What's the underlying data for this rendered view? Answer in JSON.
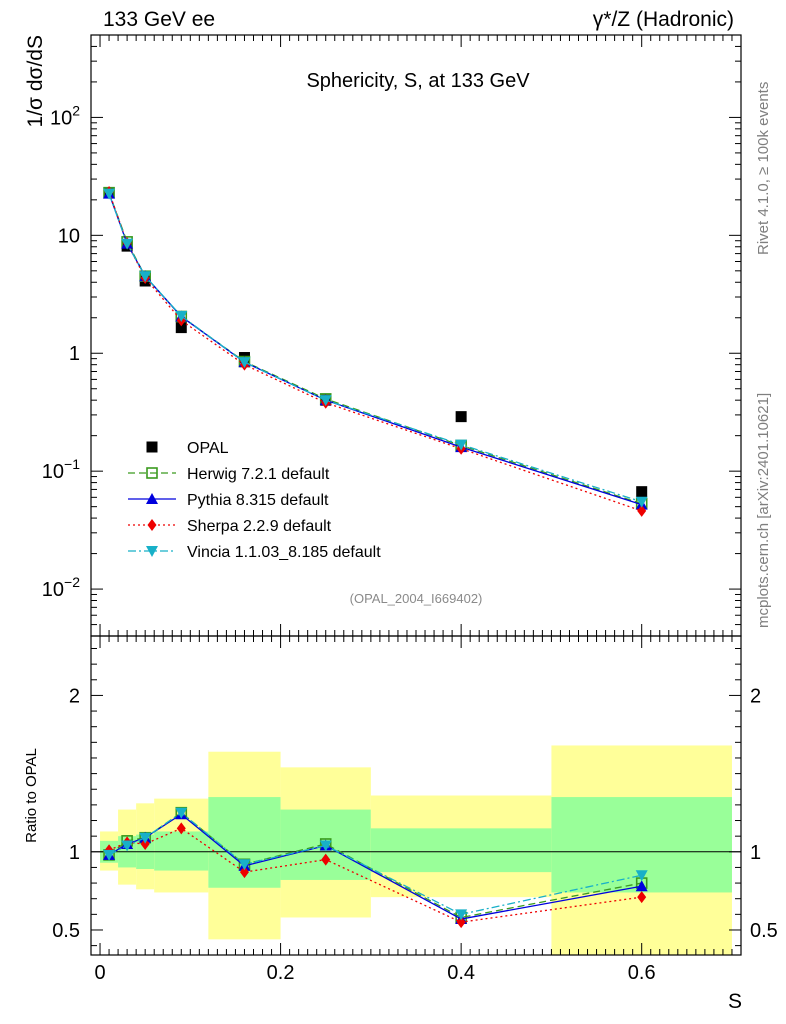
{
  "header": {
    "left": "133 GeV ee",
    "right": "γ*/Z (Hadronic)"
  },
  "side_labels": {
    "rivet": "Rivet 4.1.0, ≥ 100k events",
    "mcplots": "mcplots.cern.ch [arXiv:2401.10621]"
  },
  "colors": {
    "data": "#000000",
    "herwig": "#3a9a1e",
    "pythia": "#0000dd",
    "sherpa": "#ee0000",
    "vincia": "#18b0c8",
    "band_inner": "#99ff99",
    "band_outer": "#ffff99",
    "watermark": "#8a8a8a"
  },
  "chart_data": [
    {
      "type": "line",
      "panel": "main",
      "title": "Sphericity, S, at 133 GeV",
      "watermark": "(OPAL_2004_I669402)",
      "ylabel": "1/σ dσ/dS",
      "yscale": "log",
      "ylim": [
        0.004,
        500
      ],
      "xlim": [
        -0.01,
        0.71
      ],
      "y_ticks": [
        {
          "v": 0.01,
          "base": "10",
          "exp": "−2"
        },
        {
          "v": 0.1,
          "base": "10",
          "exp": "−1"
        },
        {
          "v": 1,
          "base": "1",
          "exp": ""
        },
        {
          "v": 10,
          "base": "10",
          "exp": ""
        },
        {
          "v": 100,
          "base": "10",
          "exp": "2"
        }
      ],
      "legend_position": "center-left",
      "x": [
        0.01,
        0.03,
        0.05,
        0.09,
        0.16,
        0.25,
        0.4,
        0.6
      ],
      "series": [
        {
          "name": "OPAL",
          "key": "data",
          "marker": "square",
          "line": "none",
          "values": [
            23.0,
            8.1,
            4.1,
            1.65,
            0.92,
            0.4,
            0.29,
            0.067
          ]
        },
        {
          "name": "Herwig 7.2.1 default",
          "key": "herwig",
          "marker": "open-square",
          "line": "dashed",
          "values": [
            23.0,
            8.8,
            4.5,
            2.05,
            0.85,
            0.41,
            0.165,
            0.053
          ]
        },
        {
          "name": "Pythia 8.315 default",
          "key": "pythia",
          "marker": "triangle-up",
          "line": "solid",
          "values": [
            22.6,
            8.5,
            4.5,
            2.05,
            0.84,
            0.4,
            0.16,
            0.052
          ]
        },
        {
          "name": "Sherpa 2.2.9 default",
          "key": "sherpa",
          "marker": "diamond",
          "line": "dotted",
          "values": [
            23.3,
            8.6,
            4.35,
            1.9,
            0.8,
            0.38,
            0.155,
            0.046
          ]
        },
        {
          "name": "Vincia 1.1.03_8.185 default",
          "key": "vincia",
          "marker": "triangle-down",
          "line": "dashdot",
          "values": [
            22.6,
            8.5,
            4.5,
            2.07,
            0.84,
            0.4,
            0.168,
            0.055
          ]
        }
      ]
    },
    {
      "type": "line",
      "panel": "ratio",
      "ylabel": "Ratio to OPAL",
      "xlabel": "S",
      "ylim": [
        0.34,
        2.38
      ],
      "xlim": [
        -0.01,
        0.71
      ],
      "x_ticks": [
        0,
        0.2,
        0.4,
        0.6
      ],
      "x_tick_labels": [
        "0",
        "0.2",
        "0.4",
        "0.6"
      ],
      "y_ticks": [
        0.5,
        1,
        2
      ],
      "y_tick_labels": [
        "0.5",
        "1",
        "2"
      ],
      "bins": [
        {
          "lo": 0.0,
          "hi": 0.02,
          "inner": [
            0.93,
            1.07
          ],
          "outer": [
            0.88,
            1.13
          ]
        },
        {
          "lo": 0.02,
          "hi": 0.04,
          "inner": [
            0.9,
            1.1
          ],
          "outer": [
            0.79,
            1.27
          ]
        },
        {
          "lo": 0.04,
          "hi": 0.06,
          "inner": [
            0.89,
            1.11
          ],
          "outer": [
            0.76,
            1.31
          ]
        },
        {
          "lo": 0.06,
          "hi": 0.12,
          "inner": [
            0.88,
            1.13
          ],
          "outer": [
            0.74,
            1.34
          ]
        },
        {
          "lo": 0.12,
          "hi": 0.2,
          "inner": [
            0.77,
            1.35
          ],
          "outer": [
            0.44,
            1.64
          ]
        },
        {
          "lo": 0.2,
          "hi": 0.3,
          "inner": [
            0.82,
            1.27
          ],
          "outer": [
            0.58,
            1.54
          ]
        },
        {
          "lo": 0.3,
          "hi": 0.5,
          "inner": [
            0.87,
            1.15
          ],
          "outer": [
            0.71,
            1.36
          ]
        },
        {
          "lo": 0.5,
          "hi": 0.7,
          "inner": [
            0.74,
            1.35
          ],
          "outer": [
            0.34,
            1.68
          ]
        }
      ],
      "x": [
        0.01,
        0.03,
        0.05,
        0.09,
        0.16,
        0.25,
        0.4,
        0.6
      ],
      "series": [
        {
          "name": "Herwig 7.2.1 default",
          "key": "herwig",
          "marker": "open-square",
          "line": "dashed",
          "values": [
            0.98,
            1.07,
            1.09,
            1.25,
            0.92,
            1.05,
            0.58,
            0.8
          ]
        },
        {
          "name": "Pythia 8.315 default",
          "key": "pythia",
          "marker": "triangle-up",
          "line": "solid",
          "values": [
            0.98,
            1.05,
            1.09,
            1.24,
            0.91,
            1.04,
            0.57,
            0.78
          ]
        },
        {
          "name": "Sherpa 2.2.9 default",
          "key": "sherpa",
          "marker": "diamond",
          "line": "dotted",
          "values": [
            1.01,
            1.06,
            1.05,
            1.15,
            0.87,
            0.95,
            0.55,
            0.71
          ]
        },
        {
          "name": "Vincia 1.1.03_8.185 default",
          "key": "vincia",
          "marker": "triangle-down",
          "line": "dashdot",
          "values": [
            0.98,
            1.04,
            1.09,
            1.25,
            0.92,
            1.04,
            0.6,
            0.85
          ]
        }
      ]
    }
  ]
}
